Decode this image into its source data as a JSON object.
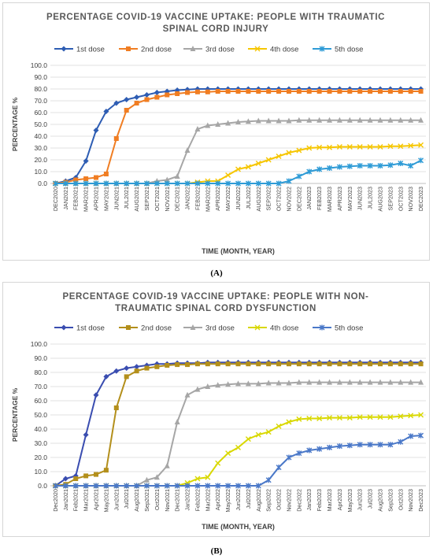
{
  "panel_labels": {
    "a": "(A)",
    "b": "(B)"
  },
  "colors": [
    "#2e5db3",
    "#f07d22",
    "#a6a6a6",
    "#f6c600",
    "#2e9bd6"
  ],
  "colorsB": [
    "#3a4db0",
    "#b38f1b",
    "#a6a6a6",
    "#d9d800",
    "#4a78c8"
  ],
  "chart_data": [
    {
      "type": "line",
      "title_lines": [
        "PERCENTAGE COVID-19 VACCINE UPTAKE: PEOPLE WITH TRAUMATIC",
        "SPINAL CORD INJURY"
      ],
      "xlabel": "TIME (MONTH, YEAR)",
      "ylabel": "PERCENTAGE %",
      "ylim": [
        0,
        100
      ],
      "yticks": [
        "0.0",
        "10.0",
        "20.0",
        "30.0",
        "40.0",
        "50.0",
        "60.0",
        "70.0",
        "80.0",
        "90.0",
        "100.0"
      ],
      "grid": true,
      "legend_position": "top",
      "categories": [
        "DEC2020",
        "JAN2021",
        "FEB2021",
        "MAR2021",
        "APR2021",
        "MAY2021",
        "JUN2021",
        "JUL2021",
        "AUG2021",
        "SEP2021",
        "OCT2021",
        "NOV2021",
        "DEC2021",
        "JAN2022",
        "FEB2022",
        "MAR2022",
        "APR2022",
        "MAY2022",
        "JUN2022",
        "JUL2022",
        "AUG2022",
        "SEP2022",
        "OCT2022",
        "NOV2022",
        "DEC2022",
        "JAN2023",
        "FEB2023",
        "MAR2023",
        "APR2023",
        "MAY2023",
        "JUN2023",
        "JUL2023",
        "AUG2023",
        "SEP2023",
        "OCT2023",
        "NOV2023",
        "DEC2023"
      ],
      "series": [
        {
          "name": "1st dose",
          "marker": "diamond",
          "values": [
            0,
            2,
            5,
            19,
            45,
            61,
            68,
            71,
            73,
            75,
            77,
            78,
            79,
            79.5,
            80,
            80,
            80,
            80,
            80,
            80,
            80,
            80,
            80,
            80,
            80,
            80,
            80,
            80,
            80,
            80,
            80,
            80,
            80,
            80,
            80,
            80,
            80
          ]
        },
        {
          "name": "2nd dose",
          "marker": "square",
          "values": [
            0,
            1,
            3,
            4,
            5,
            8,
            38,
            62,
            68,
            71,
            73,
            75,
            76,
            77,
            77.5,
            77.5,
            78,
            78,
            78,
            78,
            78,
            78,
            78,
            78,
            78,
            78,
            78,
            78,
            78,
            78,
            78,
            78,
            78,
            78,
            78,
            78,
            78
          ]
        },
        {
          "name": "3rd dose",
          "marker": "triangle",
          "values": [
            0,
            0,
            0,
            0,
            0,
            0,
            0,
            0,
            0,
            0,
            2,
            3,
            6,
            28,
            46,
            49,
            50,
            51,
            52,
            52.5,
            53,
            53,
            53,
            53,
            53.5,
            53.5,
            53.5,
            53.5,
            53.5,
            53.5,
            53.5,
            53.5,
            53.5,
            53.5,
            53.5,
            53.5,
            53.5
          ]
        },
        {
          "name": "4th dose",
          "marker": "x",
          "values": [
            0,
            0,
            0,
            0,
            0,
            0,
            0,
            0,
            0,
            0,
            0,
            0,
            0,
            0,
            1,
            2,
            2,
            7,
            12,
            14,
            17,
            20,
            23,
            26,
            28,
            30,
            30.5,
            30.5,
            31,
            31,
            31,
            31,
            31,
            31.5,
            31.5,
            32,
            32.5
          ]
        },
        {
          "name": "5th dose",
          "marker": "star",
          "values": [
            0,
            0,
            0,
            0,
            0,
            0,
            0,
            0,
            0,
            0,
            0,
            0,
            0,
            0,
            0,
            0,
            0,
            0,
            0,
            0,
            0,
            0,
            0,
            2,
            6,
            10,
            12,
            13,
            14,
            14.5,
            15,
            15,
            15,
            15.5,
            17,
            15,
            19.5
          ]
        }
      ]
    },
    {
      "type": "line",
      "title_lines": [
        "PERCENTAGE COVID-19 VACCINE UPTAKE: PEOPLE WITH NON-",
        "TRAUMATIC SPINAL CORD DYSFUNCTION"
      ],
      "xlabel": "TIME (MONTH, YEAR)",
      "ylabel": "PERCENTAGE %",
      "ylim": [
        0,
        100
      ],
      "yticks": [
        "0.0",
        "10.0",
        "20.0",
        "30.0",
        "40.0",
        "50.0",
        "60.0",
        "70.0",
        "80.0",
        "90.0",
        "100.0"
      ],
      "grid": true,
      "legend_position": "top",
      "categories": [
        "Dec2020",
        "Jan2021",
        "Feb2021",
        "Mar2021",
        "Apr2021",
        "May2021",
        "Jun2021",
        "Jul2021",
        "Aug2021",
        "Sep2021",
        "Oct2021",
        "Nov2021",
        "Dec2021",
        "Jan2022",
        "Feb2022",
        "Mar2022",
        "Apr2022",
        "May2022",
        "Jun2022",
        "Jul2022",
        "Aug2022",
        "Sep2022",
        "Oct2022",
        "Nov2022",
        "Dec2022",
        "Jan2023",
        "Feb2023",
        "Mar2023",
        "Apr2023",
        "May2023",
        "Jun2023",
        "Jul2023",
        "Aug2023",
        "Sep2023",
        "Oct2023",
        "Nov2023",
        "Dec2023"
      ],
      "series": [
        {
          "name": "1st dose",
          "marker": "diamond",
          "values": [
            0,
            5,
            7,
            36,
            64,
            77,
            81,
            83,
            84,
            85,
            86,
            86,
            86.5,
            86.5,
            86.5,
            87,
            87,
            87,
            87,
            87,
            87,
            87,
            87,
            87,
            87,
            87,
            87,
            87,
            87,
            87,
            87,
            87,
            87,
            87,
            87,
            87,
            87
          ]
        },
        {
          "name": "2nd dose",
          "marker": "square",
          "values": [
            0,
            1,
            5,
            7,
            8,
            11,
            55,
            77,
            81,
            83,
            84,
            85,
            85.5,
            85.5,
            86,
            86,
            86,
            86,
            86,
            86,
            86,
            86,
            86,
            86,
            86,
            86,
            86,
            86,
            86,
            86,
            86,
            86,
            86,
            86,
            86,
            86,
            86
          ]
        },
        {
          "name": "3rd dose",
          "marker": "triangle",
          "values": [
            0,
            0,
            0,
            0,
            0,
            0,
            0,
            0,
            0,
            4,
            6,
            14,
            45,
            64,
            68,
            70,
            71,
            71.5,
            72,
            72,
            72,
            72.5,
            72.5,
            72.5,
            73,
            73,
            73,
            73,
            73,
            73,
            73,
            73,
            73,
            73,
            73,
            73,
            73
          ]
        },
        {
          "name": "4th dose",
          "marker": "x",
          "values": [
            0,
            0,
            0,
            0,
            0,
            0,
            0,
            0,
            0,
            0,
            0,
            0,
            0,
            2,
            5,
            6,
            16,
            23,
            27,
            33,
            36,
            38,
            42,
            45,
            47,
            47.5,
            47.5,
            48,
            48,
            48,
            48.5,
            48.5,
            48.5,
            48.5,
            49,
            49.5,
            50
          ]
        },
        {
          "name": "5th dose",
          "marker": "star",
          "values": [
            0,
            0,
            0,
            0,
            0,
            0,
            0,
            0,
            0,
            0,
            0,
            0,
            0,
            0,
            0,
            0,
            0,
            0,
            0,
            0,
            0,
            4,
            13,
            20,
            23,
            25,
            26,
            27,
            28,
            28.5,
            29,
            29,
            29,
            29,
            31,
            35,
            35.5
          ]
        }
      ]
    }
  ]
}
